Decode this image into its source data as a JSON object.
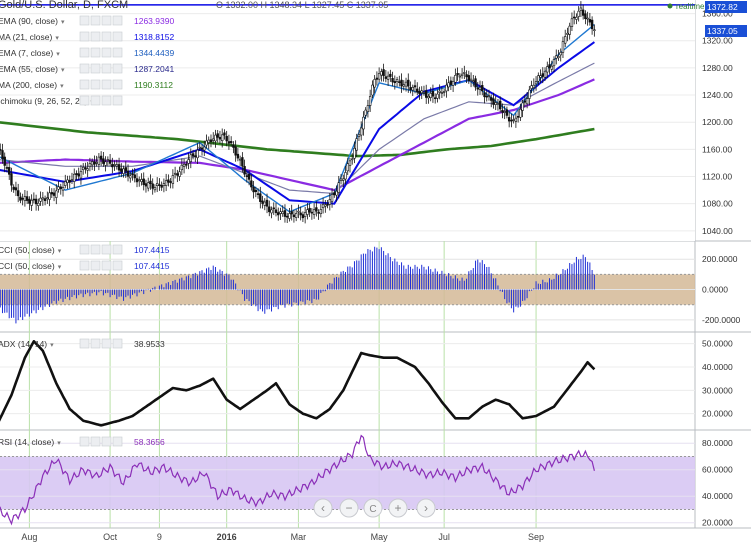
{
  "header": {
    "symbol": "Gold/U.S. Dollar, D, FXCM",
    "ohlc": "O 1332.00  H 1348.34  L 1327.45  C 1337.05",
    "realtime_label": "realtime"
  },
  "chart_data": [
    {
      "type": "candlestick",
      "title": "Gold/U.S. Dollar, D, FXCM",
      "price_badges": [
        "1372.82",
        "1337.05"
      ],
      "y_ticks": [
        1040,
        1080,
        1120,
        1160,
        1200,
        1240,
        1280,
        1320,
        1360
      ],
      "x_tick_labels": [
        "Aug",
        "Oct",
        "9",
        "2016",
        "Mar",
        "May",
        "Jul",
        "Sep"
      ],
      "horizontal_line": 1372.82,
      "ylim": [
        1025,
        1380
      ],
      "price_path": [
        [
          0,
          1162
        ],
        [
          3,
          1140
        ],
        [
          6,
          1110
        ],
        [
          9,
          1090
        ],
        [
          13,
          1085
        ],
        [
          17,
          1082
        ],
        [
          21,
          1088
        ],
        [
          26,
          1098
        ],
        [
          30,
          1110
        ],
        [
          35,
          1122
        ],
        [
          40,
          1135
        ],
        [
          45,
          1145
        ],
        [
          50,
          1140
        ],
        [
          55,
          1130
        ],
        [
          60,
          1120
        ],
        [
          65,
          1110
        ],
        [
          70,
          1105
        ],
        [
          75,
          1110
        ],
        [
          80,
          1125
        ],
        [
          85,
          1145
        ],
        [
          90,
          1160
        ],
        [
          95,
          1175
        ],
        [
          100,
          1180
        ],
        [
          103,
          1172
        ],
        [
          106,
          1155
        ],
        [
          109,
          1135
        ],
        [
          112,
          1112
        ],
        [
          115,
          1095
        ],
        [
          118,
          1082
        ],
        [
          121,
          1072
        ],
        [
          124,
          1068
        ],
        [
          127,
          1065
        ],
        [
          130,
          1062
        ],
        [
          133,
          1066
        ],
        [
          136,
          1063
        ],
        [
          139,
          1070
        ],
        [
          142,
          1067
        ],
        [
          145,
          1075
        ],
        [
          148,
          1085
        ],
        [
          150,
          1095
        ],
        [
          152,
          1108
        ],
        [
          154,
          1120
        ],
        [
          156,
          1135
        ],
        [
          158,
          1150
        ],
        [
          160,
          1172
        ],
        [
          162,
          1195
        ],
        [
          164,
          1215
        ],
        [
          166,
          1240
        ],
        [
          168,
          1262
        ],
        [
          170,
          1272
        ],
        [
          173,
          1268
        ],
        [
          176,
          1262
        ],
        [
          179,
          1258
        ],
        [
          182,
          1255
        ],
        [
          185,
          1250
        ],
        [
          188,
          1245
        ],
        [
          191,
          1240
        ],
        [
          194,
          1238
        ],
        [
          197,
          1242
        ],
        [
          200,
          1252
        ],
        [
          203,
          1262
        ],
        [
          206,
          1272
        ],
        [
          209,
          1268
        ],
        [
          212,
          1258
        ],
        [
          215,
          1248
        ],
        [
          218,
          1238
        ],
        [
          221,
          1230
        ],
        [
          224,
          1222
        ],
        [
          227,
          1208
        ],
        [
          230,
          1200
        ],
        [
          233,
          1218
        ],
        [
          236,
          1238
        ],
        [
          239,
          1258
        ],
        [
          242,
          1268
        ],
        [
          245,
          1278
        ],
        [
          248,
          1290
        ],
        [
          251,
          1305
        ],
        [
          254,
          1335
        ],
        [
          257,
          1355
        ],
        [
          260,
          1365
        ],
        [
          263,
          1350
        ],
        [
          266,
          1337
        ]
      ],
      "series": [
        {
          "name": "EMA (90, close)",
          "value": "1263.9390",
          "color": "#8a2be2"
        },
        {
          "name": "MA (21, close)",
          "value": "1318.8152",
          "color": "#0a0ae6"
        },
        {
          "name": "EMA (7, close)",
          "value": "1344.4439",
          "color": "#1f5fbf"
        },
        {
          "name": "EMA (55, close)",
          "value": "1287.2041",
          "color": "#2a2a8c"
        },
        {
          "name": "MA (200, close)",
          "value": "1190.3112",
          "color": "#2f7d1f"
        },
        {
          "name": "Ichimoku (9, 26, 52, 26)",
          "value": "",
          "color": "#333333"
        }
      ],
      "ma_paths": {
        "ema90": [
          [
            0,
            1140
          ],
          [
            30,
            1145
          ],
          [
            60,
            1142
          ],
          [
            90,
            1140
          ],
          [
            110,
            1130
          ],
          [
            130,
            1115
          ],
          [
            150,
            1100
          ],
          [
            170,
            1135
          ],
          [
            190,
            1170
          ],
          [
            210,
            1205
          ],
          [
            230,
            1218
          ],
          [
            250,
            1240
          ],
          [
            266,
            1263
          ]
        ],
        "ma21": [
          [
            0,
            1130
          ],
          [
            30,
            1112
          ],
          [
            60,
            1128
          ],
          [
            90,
            1160
          ],
          [
            110,
            1130
          ],
          [
            130,
            1085
          ],
          [
            150,
            1080
          ],
          [
            170,
            1190
          ],
          [
            190,
            1245
          ],
          [
            210,
            1262
          ],
          [
            230,
            1225
          ],
          [
            250,
            1280
          ],
          [
            266,
            1318
          ]
        ],
        "ema7": [
          [
            0,
            1150
          ],
          [
            30,
            1100
          ],
          [
            60,
            1125
          ],
          [
            90,
            1170
          ],
          [
            110,
            1115
          ],
          [
            130,
            1068
          ],
          [
            150,
            1095
          ],
          [
            170,
            1258
          ],
          [
            190,
            1242
          ],
          [
            210,
            1262
          ],
          [
            230,
            1210
          ],
          [
            250,
            1300
          ],
          [
            266,
            1344
          ]
        ],
        "ema55": [
          [
            0,
            1145
          ],
          [
            30,
            1135
          ],
          [
            60,
            1135
          ],
          [
            90,
            1150
          ],
          [
            110,
            1125
          ],
          [
            130,
            1100
          ],
          [
            150,
            1095
          ],
          [
            170,
            1160
          ],
          [
            190,
            1205
          ],
          [
            210,
            1230
          ],
          [
            230,
            1225
          ],
          [
            250,
            1260
          ],
          [
            266,
            1287
          ]
        ],
        "ma200": [
          [
            0,
            1200
          ],
          [
            40,
            1185
          ],
          [
            80,
            1175
          ],
          [
            120,
            1160
          ],
          [
            160,
            1150
          ],
          [
            180,
            1152
          ],
          [
            200,
            1160
          ],
          [
            220,
            1165
          ],
          [
            240,
            1175
          ],
          [
            266,
            1190
          ]
        ]
      }
    },
    {
      "type": "bar",
      "series": [
        {
          "name": "CCI (50, close)",
          "value": "107.4415"
        },
        {
          "name": "CCI (50, close)",
          "value": "107.4415"
        }
      ],
      "y_ticks": [
        200,
        0,
        -200
      ],
      "y_tick_labels": [
        "200.0000",
        "0.0000",
        "-200.0000"
      ],
      "band": [
        -100,
        100
      ],
      "ylim": [
        -280,
        320
      ],
      "values_path": [
        [
          0,
          -120
        ],
        [
          8,
          -210
        ],
        [
          16,
          -150
        ],
        [
          26,
          -80
        ],
        [
          36,
          -40
        ],
        [
          46,
          -20
        ],
        [
          56,
          -60
        ],
        [
          66,
          -10
        ],
        [
          76,
          40
        ],
        [
          86,
          90
        ],
        [
          96,
          150
        ],
        [
          104,
          80
        ],
        [
          110,
          -60
        ],
        [
          118,
          -150
        ],
        [
          126,
          -110
        ],
        [
          134,
          -90
        ],
        [
          142,
          -70
        ],
        [
          148,
          40
        ],
        [
          154,
          120
        ],
        [
          158,
          160
        ],
        [
          164,
          250
        ],
        [
          170,
          280
        ],
        [
          176,
          200
        ],
        [
          182,
          150
        ],
        [
          190,
          150
        ],
        [
          196,
          120
        ],
        [
          202,
          90
        ],
        [
          208,
          60
        ],
        [
          214,
          200
        ],
        [
          218,
          160
        ],
        [
          222,
          60
        ],
        [
          226,
          -60
        ],
        [
          230,
          -140
        ],
        [
          234,
          -90
        ],
        [
          240,
          40
        ],
        [
          246,
          60
        ],
        [
          252,
          120
        ],
        [
          258,
          200
        ],
        [
          262,
          220
        ],
        [
          266,
          107
        ]
      ]
    },
    {
      "type": "line",
      "series": [
        {
          "name": "ADX (14, 14)",
          "value": "38.9533"
        }
      ],
      "y_ticks": [
        50,
        40,
        30,
        20
      ],
      "y_tick_labels": [
        "50.0000",
        "40.0000",
        "30.0000",
        "20.0000"
      ],
      "ylim": [
        13,
        55
      ],
      "values_path": [
        [
          0,
          16
        ],
        [
          6,
          28
        ],
        [
          12,
          44
        ],
        [
          16,
          51
        ],
        [
          20,
          47
        ],
        [
          26,
          33
        ],
        [
          32,
          22
        ],
        [
          38,
          17
        ],
        [
          46,
          15
        ],
        [
          54,
          17
        ],
        [
          60,
          19
        ],
        [
          66,
          23
        ],
        [
          72,
          27
        ],
        [
          78,
          31
        ],
        [
          84,
          30
        ],
        [
          90,
          32
        ],
        [
          96,
          35
        ],
        [
          102,
          26
        ],
        [
          108,
          22
        ],
        [
          114,
          26
        ],
        [
          120,
          30
        ],
        [
          124,
          33
        ],
        [
          130,
          24
        ],
        [
          136,
          20
        ],
        [
          142,
          18
        ],
        [
          148,
          22
        ],
        [
          154,
          30
        ],
        [
          158,
          38
        ],
        [
          162,
          46
        ],
        [
          166,
          45
        ],
        [
          172,
          44
        ],
        [
          178,
          44
        ],
        [
          186,
          40
        ],
        [
          192,
          33
        ],
        [
          198,
          25
        ],
        [
          204,
          18
        ],
        [
          210,
          18
        ],
        [
          216,
          23
        ],
        [
          222,
          26
        ],
        [
          228,
          24
        ],
        [
          234,
          18
        ],
        [
          240,
          19
        ],
        [
          248,
          23
        ],
        [
          256,
          33
        ],
        [
          260,
          38
        ],
        [
          263,
          42
        ],
        [
          266,
          39
        ]
      ]
    },
    {
      "type": "line",
      "series": [
        {
          "name": "RSI (14, close)",
          "value": "58.3656"
        }
      ],
      "y_ticks": [
        80,
        60,
        40,
        20
      ],
      "y_tick_labels": [
        "80.0000",
        "60.0000",
        "40.0000",
        "20.0000"
      ],
      "band": [
        30,
        70
      ],
      "ylim": [
        16,
        90
      ],
      "values_path": [
        [
          0,
          30
        ],
        [
          6,
          22
        ],
        [
          12,
          30
        ],
        [
          16,
          42
        ],
        [
          20,
          55
        ],
        [
          26,
          68
        ],
        [
          32,
          52
        ],
        [
          38,
          60
        ],
        [
          44,
          55
        ],
        [
          50,
          62
        ],
        [
          56,
          50
        ],
        [
          62,
          65
        ],
        [
          68,
          58
        ],
        [
          74,
          62
        ],
        [
          80,
          55
        ],
        [
          86,
          50
        ],
        [
          92,
          58
        ],
        [
          98,
          40
        ],
        [
          104,
          45
        ],
        [
          110,
          38
        ],
        [
          116,
          35
        ],
        [
          122,
          42
        ],
        [
          128,
          40
        ],
        [
          134,
          45
        ],
        [
          140,
          50
        ],
        [
          146,
          58
        ],
        [
          152,
          65
        ],
        [
          158,
          72
        ],
        [
          162,
          86
        ],
        [
          166,
          68
        ],
        [
          172,
          62
        ],
        [
          178,
          65
        ],
        [
          186,
          60
        ],
        [
          192,
          56
        ],
        [
          198,
          58
        ],
        [
          204,
          54
        ],
        [
          210,
          60
        ],
        [
          216,
          62
        ],
        [
          222,
          52
        ],
        [
          228,
          42
        ],
        [
          234,
          48
        ],
        [
          240,
          60
        ],
        [
          248,
          66
        ],
        [
          256,
          70
        ],
        [
          260,
          72
        ],
        [
          264,
          70
        ],
        [
          266,
          58
        ]
      ]
    }
  ],
  "nav_controls": [
    "zoom-out",
    "reset",
    "zoom-in",
    "scroll-right",
    "scroll-left"
  ],
  "nav_symbols": {
    "left": "‹",
    "minus": "−",
    "reset": "C",
    "plus": "+",
    "right": "›"
  }
}
